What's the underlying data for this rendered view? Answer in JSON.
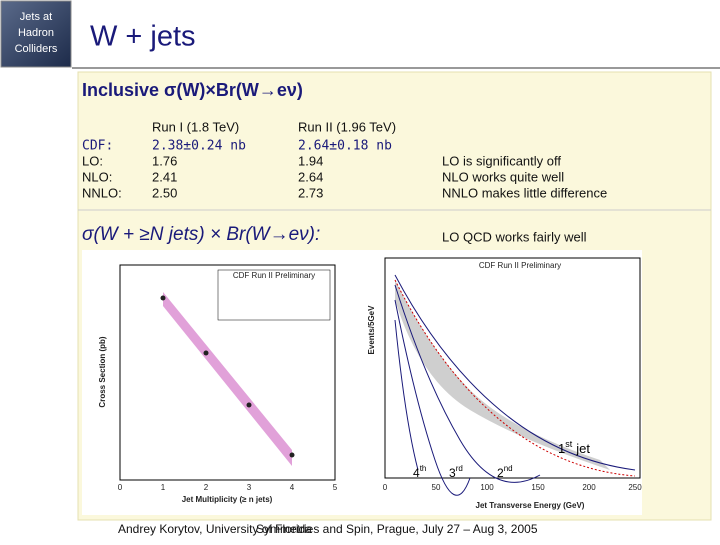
{
  "sidebar": {
    "lines": [
      "Jets at",
      "Hadron",
      "Colliders"
    ]
  },
  "header": {
    "title": "W + jets"
  },
  "inclusive": {
    "title": "Inclusive σ(W)×Br(W→eν)",
    "table": {
      "columns": [
        "Run I (1.8 TeV)",
        "Run II (1.96 TeV)"
      ],
      "rows": [
        [
          "CDF:",
          "2.38±0.24 nb",
          "2.64±0.18 nb"
        ],
        [
          "LO:",
          "1.76",
          "1.94"
        ],
        [
          "NLO:",
          "2.41",
          "2.64"
        ],
        [
          "NNLO:",
          "2.50",
          "2.73"
        ]
      ]
    },
    "notes": [
      "LO is significantly off",
      "NLO works quite well",
      "NNLO makes little difference"
    ]
  },
  "jets": {
    "title": "σ(W + ≥N jets) × Br(W→eν):",
    "note": "LO QCD works fairly well",
    "plots": [
      {
        "title": "CDF Run II Preliminary",
        "y_label": "Cross Section (pb)",
        "x_label": "Jet Multiplicity (≥ n jets)",
        "xticks": [
          "0",
          "1",
          "2",
          "3",
          "4",
          "5"
        ]
      },
      {
        "title": "CDF Run II Preliminary",
        "y_label": "Events/5GeV",
        "x_label": "Jet Transverse Energy (GeV)",
        "xticks": [
          "0",
          "50",
          "100",
          "150",
          "200",
          "250"
        ]
      }
    ],
    "jet_labels": [
      {
        "n": "1",
        "suffix": "st",
        "text": "jet"
      },
      {
        "n": "2",
        "suffix": "nd"
      },
      {
        "n": "3",
        "suffix": "rd"
      },
      {
        "n": "4",
        "suffix": "th"
      }
    ]
  },
  "footer": {
    "left": "Andrey Korytov, University of Florida",
    "right": "Symmetries and Spin, Prague, July 27 – Aug 3, 2005"
  }
}
